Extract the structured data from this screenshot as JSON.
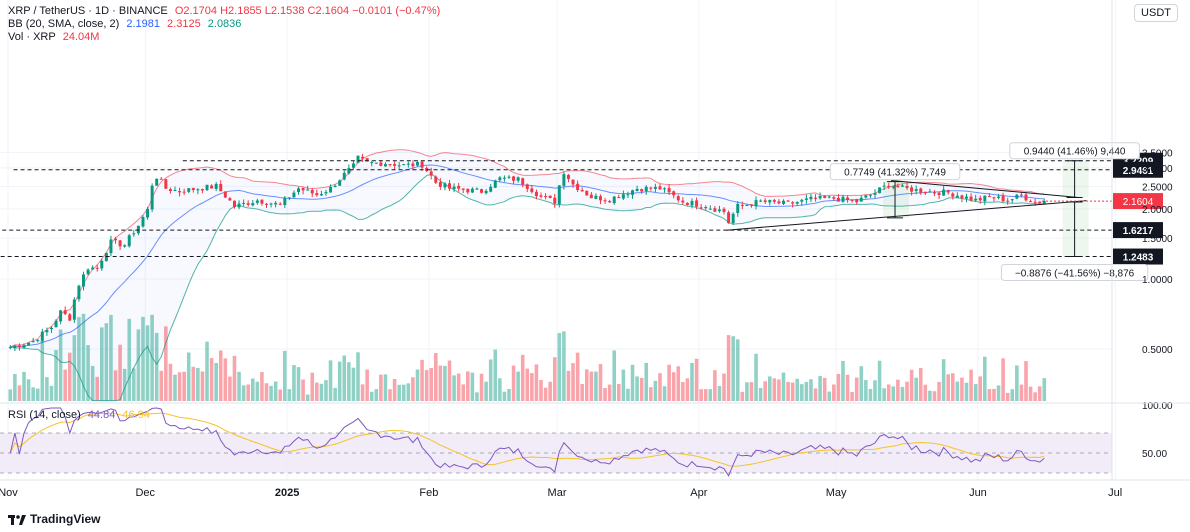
{
  "header": {
    "symbol": "XRP / TetherUS · 1D · BINANCE",
    "ohlc": "O2.1704  H2.1855  L2.1538  C2.1604  −0.0101 (−0.47%)",
    "bb_label": "BB (20, SMA, close, 2)",
    "bb_values": [
      "2.1981",
      "2.3125",
      "2.0836"
    ],
    "vol_label": "Vol · XRP",
    "vol_value": "24.04M",
    "currency_button": "USDT",
    "rsi_label": "RSI (14, close)",
    "rsi_values": [
      "44.84",
      "46.94"
    ]
  },
  "footer": {
    "brand": "TradingView"
  },
  "colors": {
    "up": "#089981",
    "down": "#f23645",
    "bb_basis": "#2962ff",
    "bb_upper": "#f23645",
    "bb_lower": "#089981",
    "rsi": "#7e57c2",
    "rsi_ma": "#f7c325",
    "rsi_band": "#ede7f6"
  },
  "chart_data": [
    {
      "type": "candlestick",
      "title": "XRP / TetherUS · 1D · BINANCE",
      "x_ticks": [
        "Nov",
        "Dec",
        "2025",
        "Feb",
        "Mar",
        "Apr",
        "May",
        "Jun",
        "Jul"
      ],
      "y_ticks": [
        "3.5000",
        "3.0000",
        "2.5000",
        "2.0000",
        "1.5000",
        "1.0000",
        "0.5000"
      ],
      "current_price": "2.1604",
      "levels": [
        "3.2209",
        "2.9461",
        "1.6217",
        "1.2483"
      ],
      "annotations": [
        {
          "label": "0.9440 (41.46%) 9,440",
          "from": 2.24,
          "to": 3.2209
        },
        {
          "label": "0.7749 (41.32%) 7,749",
          "from": 1.83,
          "to": 2.62
        },
        {
          "label": "−0.8876 (−41.56%) −8,876",
          "from": 2.14,
          "to": 1.2483
        }
      ],
      "close_anchors": [
        [
          "2024-11-01",
          0.51
        ],
        [
          "2024-11-06",
          0.54
        ],
        [
          "2024-11-10",
          0.62
        ],
        [
          "2024-11-12",
          0.72
        ],
        [
          "2024-11-14",
          0.68
        ],
        [
          "2024-11-16",
          0.95
        ],
        [
          "2024-11-18",
          1.12
        ],
        [
          "2024-11-20",
          1.11
        ],
        [
          "2024-11-23",
          1.44
        ],
        [
          "2024-11-26",
          1.4
        ],
        [
          "2024-11-29",
          1.7
        ],
        [
          "2024-12-01",
          1.98
        ],
        [
          "2024-12-02",
          2.55
        ],
        [
          "2024-12-03",
          2.75
        ],
        [
          "2024-12-05",
          2.45
        ],
        [
          "2024-12-08",
          2.38
        ],
        [
          "2024-12-12",
          2.45
        ],
        [
          "2024-12-16",
          2.5
        ],
        [
          "2024-12-20",
          2.05
        ],
        [
          "2024-12-25",
          2.18
        ],
        [
          "2024-12-30",
          2.08
        ],
        [
          "2025-01-03",
          2.45
        ],
        [
          "2025-01-07",
          2.3
        ],
        [
          "2025-01-10",
          2.45
        ],
        [
          "2025-01-15",
          3.05
        ],
        [
          "2025-01-16",
          3.3
        ],
        [
          "2025-01-18",
          3.15
        ],
        [
          "2025-01-22",
          3.15
        ],
        [
          "2025-01-26",
          3.08
        ],
        [
          "2025-01-30",
          3.1
        ],
        [
          "2025-02-02",
          2.6
        ],
        [
          "2025-02-05",
          2.45
        ],
        [
          "2025-02-08",
          2.42
        ],
        [
          "2025-02-12",
          2.38
        ],
        [
          "2025-02-16",
          2.7
        ],
        [
          "2025-02-20",
          2.68
        ],
        [
          "2025-02-25",
          2.25
        ],
        [
          "2025-02-28",
          2.15
        ],
        [
          "2025-03-02",
          2.9
        ],
        [
          "2025-03-04",
          2.55
        ],
        [
          "2025-03-08",
          2.25
        ],
        [
          "2025-03-12",
          2.2
        ],
        [
          "2025-03-18",
          2.45
        ],
        [
          "2025-03-23",
          2.45
        ],
        [
          "2025-03-28",
          2.15
        ],
        [
          "2025-04-01",
          2.08
        ],
        [
          "2025-04-06",
          1.95
        ],
        [
          "2025-04-07",
          1.75
        ],
        [
          "2025-04-09",
          2.05
        ],
        [
          "2025-04-14",
          2.15
        ],
        [
          "2025-04-20",
          2.1
        ],
        [
          "2025-04-25",
          2.2
        ],
        [
          "2025-04-30",
          2.22
        ],
        [
          "2025-05-05",
          2.15
        ],
        [
          "2025-05-09",
          2.35
        ],
        [
          "2025-05-12",
          2.55
        ],
        [
          "2025-05-15",
          2.45
        ],
        [
          "2025-05-20",
          2.38
        ],
        [
          "2025-05-25",
          2.35
        ],
        [
          "2025-05-31",
          2.18
        ],
        [
          "2025-06-03",
          2.25
        ],
        [
          "2025-06-07",
          2.18
        ],
        [
          "2025-06-10",
          2.28
        ],
        [
          "2025-06-13",
          2.14
        ],
        [
          "2025-06-15",
          2.1604
        ]
      ]
    },
    {
      "type": "line",
      "title": "RSI (14, close)",
      "y_ticks": [
        "100.00",
        "50.00"
      ],
      "levels": [
        70,
        50,
        30
      ],
      "last_values": [
        44.84,
        46.94
      ]
    }
  ]
}
